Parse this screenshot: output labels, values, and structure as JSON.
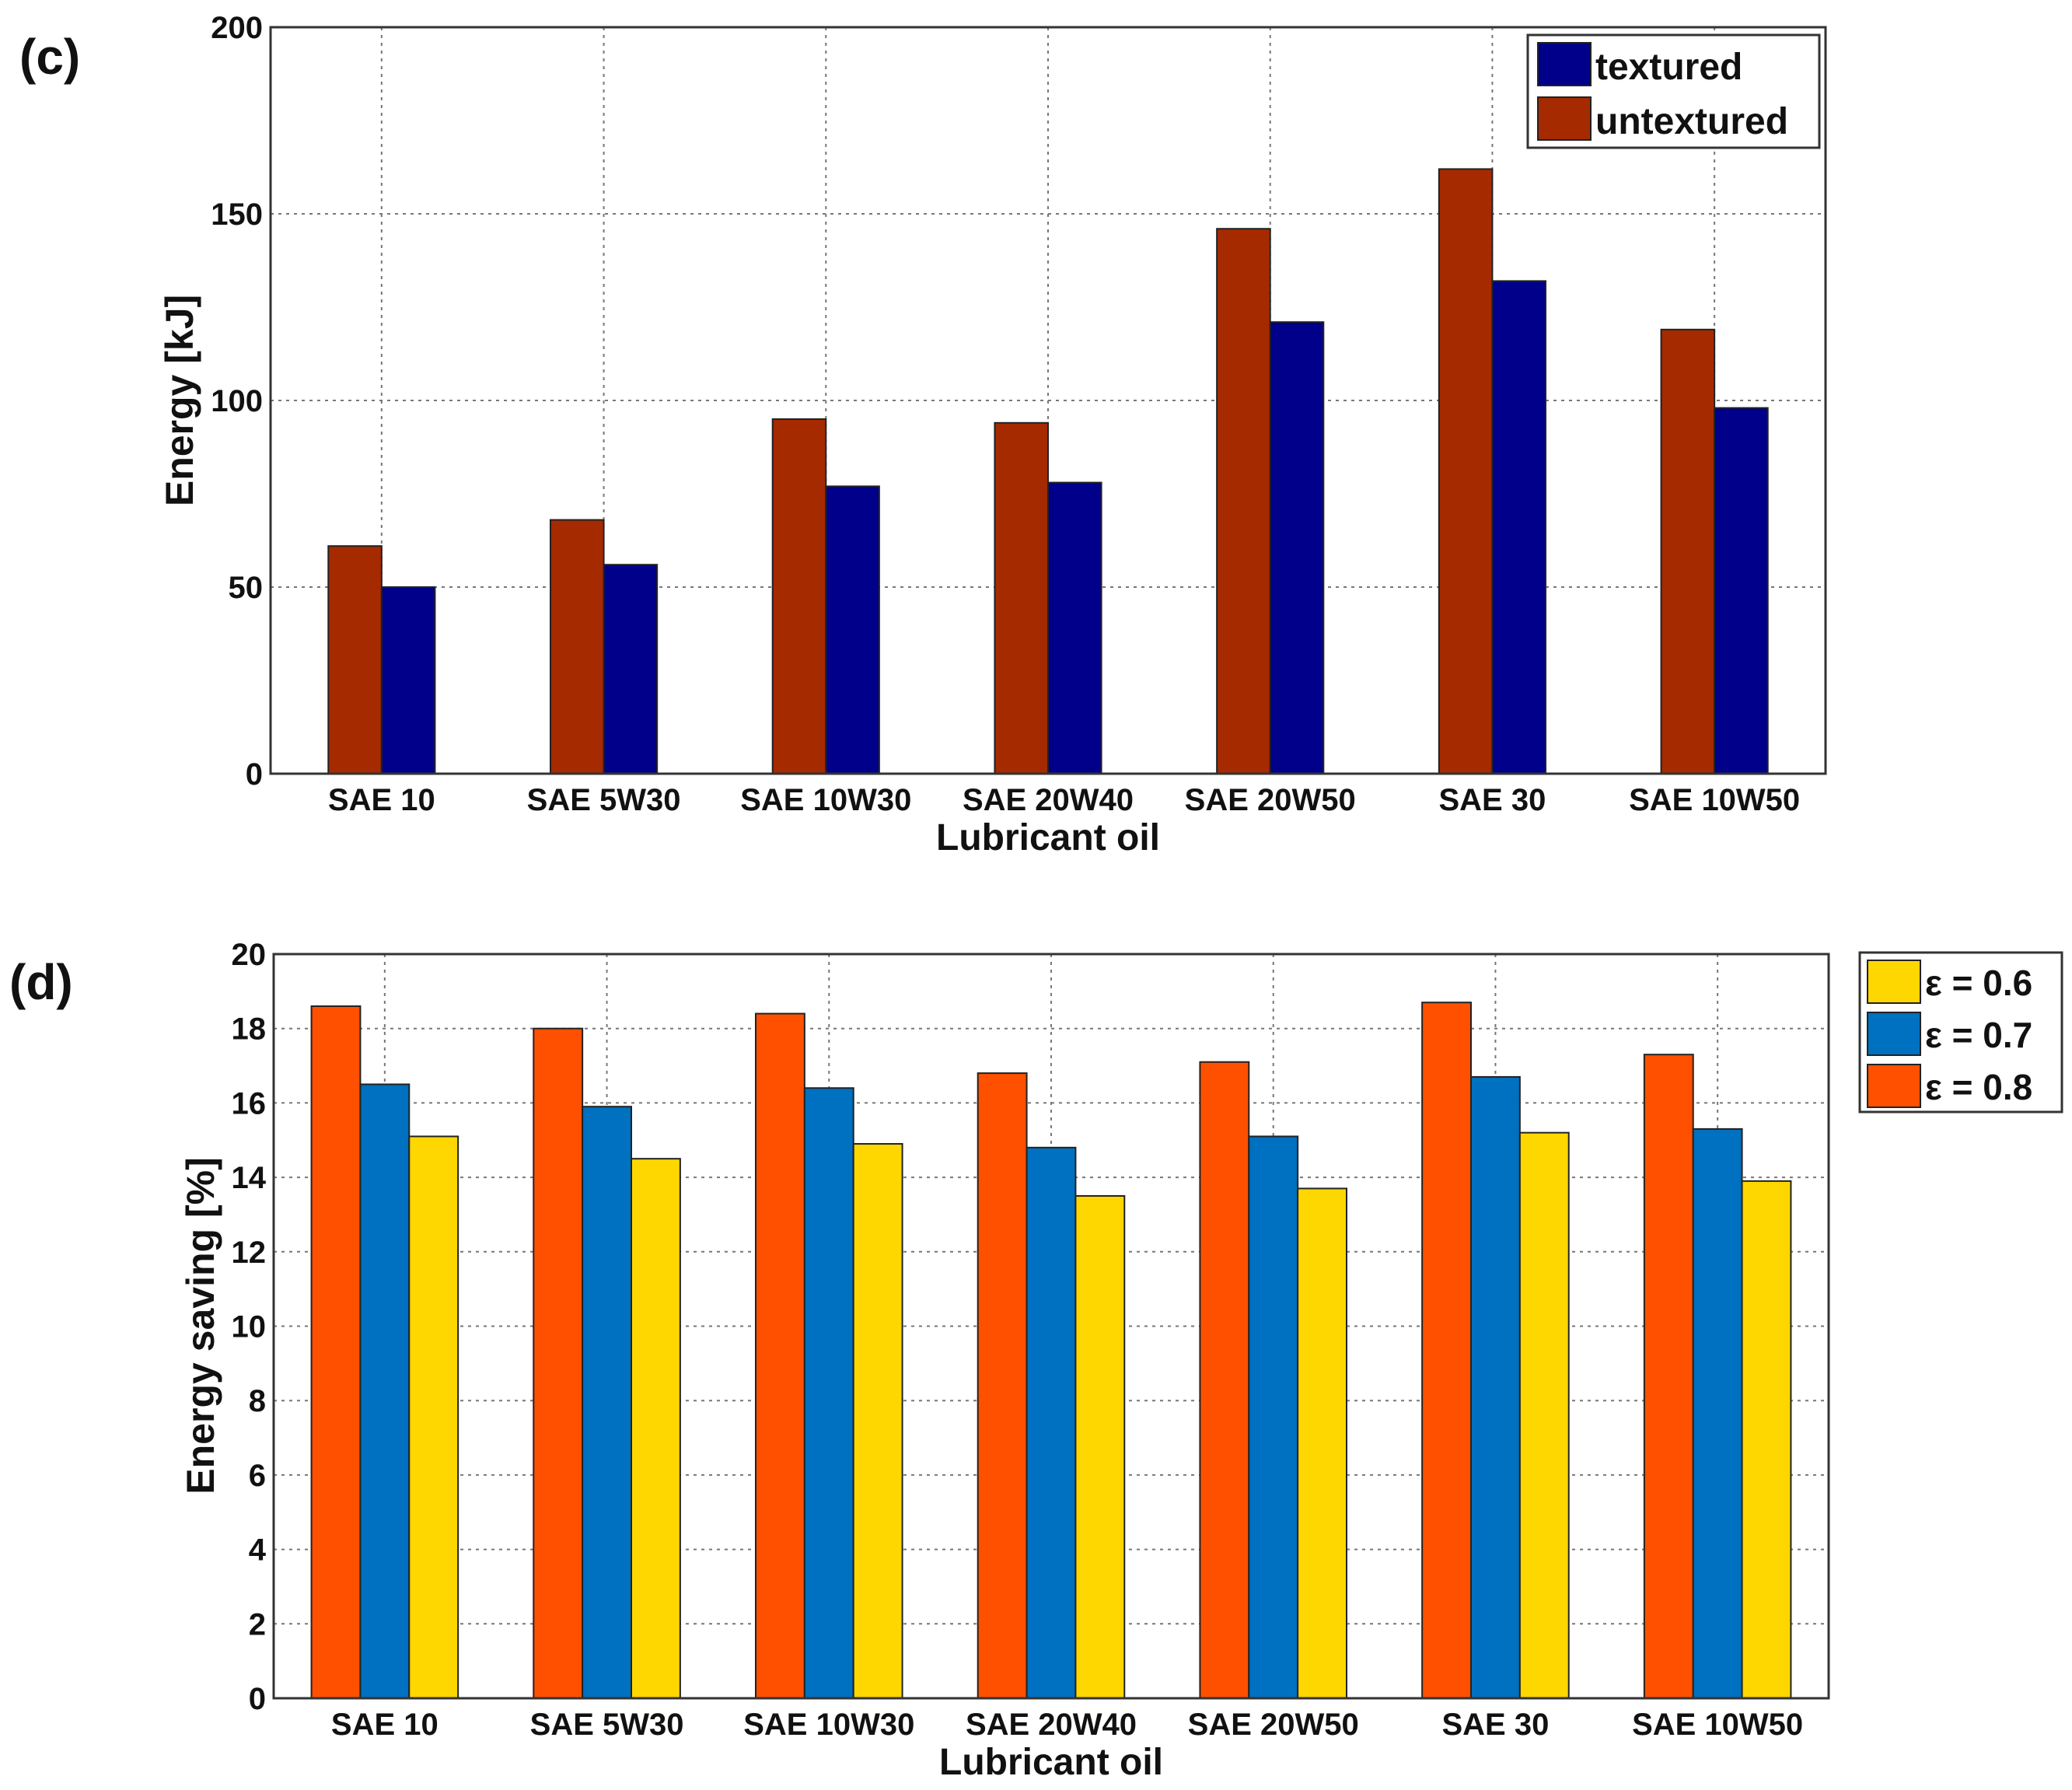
{
  "chart_data": [
    {
      "panel_label": "(c)",
      "type": "bar",
      "title": "",
      "xlabel": "Lubricant oil",
      "ylabel": "Energy [kJ]",
      "ylim": [
        0,
        200
      ],
      "yticks": [
        "0",
        "50",
        "100",
        "150",
        "200"
      ],
      "grid": true,
      "legend_position": "top-right",
      "categories": [
        "SAE 10",
        "SAE 5W30",
        "SAE 10W30",
        "SAE 20W40",
        "SAE 20W50",
        "SAE 30",
        "SAE 10W50"
      ],
      "series": [
        {
          "name": "untextured",
          "color": "#a52a00",
          "values": [
            61,
            68,
            95,
            94,
            146,
            162,
            119
          ]
        },
        {
          "name": "textured",
          "color": "#00008b",
          "values": [
            50,
            56,
            77,
            78,
            121,
            132,
            98
          ]
        }
      ],
      "legend": [
        {
          "label": "textured",
          "color": "#00008b"
        },
        {
          "label": "untextured",
          "color": "#a52a00"
        }
      ]
    },
    {
      "panel_label": "(d)",
      "type": "bar",
      "title": "",
      "xlabel": "Lubricant oil",
      "ylabel": "Energy saving [%]",
      "ylim": [
        0,
        20
      ],
      "yticks": [
        "0",
        "2",
        "4",
        "6",
        "8",
        "10",
        "12",
        "14",
        "16",
        "18",
        "20"
      ],
      "grid": true,
      "legend_position": "outside-right",
      "categories": [
        "SAE 10",
        "SAE 5W30",
        "SAE 10W30",
        "SAE 20W40",
        "SAE 20W50",
        "SAE 30",
        "SAE 10W50"
      ],
      "series": [
        {
          "name": "ε = 0.8",
          "color": "#ff5000",
          "values": [
            18.6,
            18.0,
            18.4,
            16.8,
            17.1,
            18.7,
            17.3
          ]
        },
        {
          "name": "ε = 0.7",
          "color": "#0070c0",
          "values": [
            16.5,
            15.9,
            16.4,
            14.8,
            15.1,
            16.7,
            15.3
          ]
        },
        {
          "name": "ε = 0.6",
          "color": "#ffd700",
          "values": [
            15.1,
            14.5,
            14.9,
            13.5,
            13.7,
            15.2,
            13.9
          ]
        }
      ],
      "legend": [
        {
          "label": "ε = 0.6",
          "color": "#ffd700"
        },
        {
          "label": "ε = 0.7",
          "color": "#0070c0"
        },
        {
          "label": "ε = 0.8",
          "color": "#ff5000"
        }
      ]
    }
  ]
}
